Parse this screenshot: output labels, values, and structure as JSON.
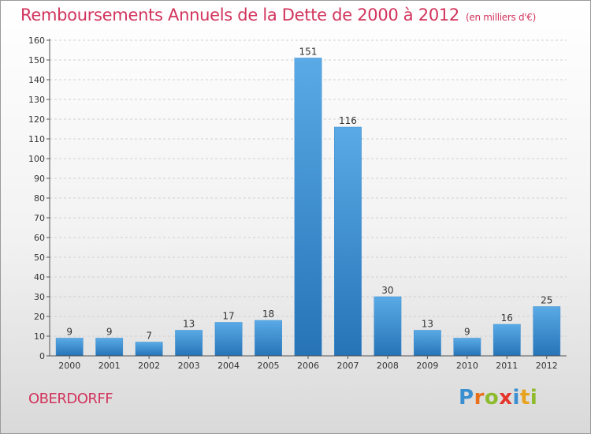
{
  "title": "Remboursements Annuels de la Dette de 2000 à 2012",
  "subtitle": "(en milliers d'€)",
  "commune": "OBERDORFF",
  "brand": {
    "name": "Proxiti",
    "letters": [
      {
        "ch": "P",
        "color": "#3a8fd1"
      },
      {
        "ch": "r",
        "color": "#e86f1c"
      },
      {
        "ch": "o",
        "color": "#8dbb2c"
      },
      {
        "ch": "x",
        "color": "#e5352b"
      },
      {
        "ch": "i",
        "color": "#3a8fd1"
      },
      {
        "ch": "t",
        "color": "#e8a21c"
      },
      {
        "ch": "i",
        "color": "#8dbb2c"
      }
    ]
  },
  "colors": {
    "title": "#d2335c",
    "bar_top": "#5aaae6",
    "bar_bottom": "#2673b6",
    "grid": "#d0d0d0",
    "axis": "#555555"
  },
  "chart_data": {
    "type": "bar",
    "categories": [
      "2000",
      "2001",
      "2002",
      "2003",
      "2004",
      "2005",
      "2006",
      "2007",
      "2008",
      "2009",
      "2010",
      "2011",
      "2012"
    ],
    "values": [
      9,
      9,
      7,
      13,
      17,
      18,
      151,
      116,
      30,
      13,
      9,
      16,
      25
    ],
    "ylim": [
      0,
      160
    ],
    "ytick_step": 10,
    "xlabel": "",
    "ylabel": "",
    "grid": true,
    "legend": "none"
  }
}
